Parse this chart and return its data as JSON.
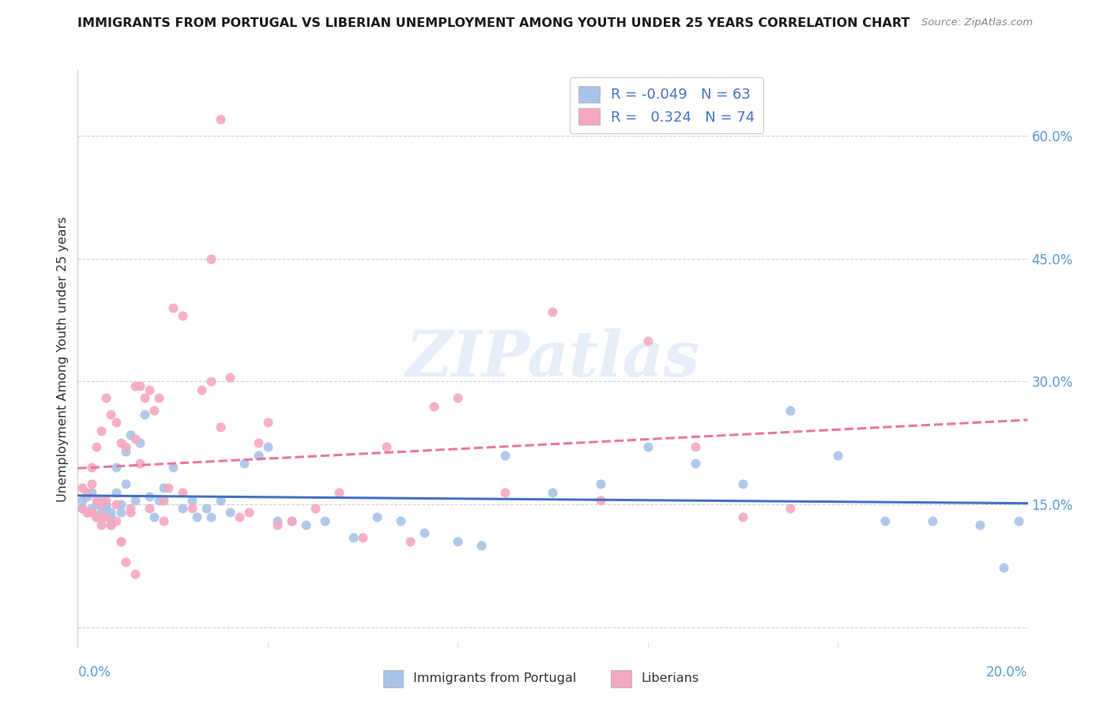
{
  "title": "IMMIGRANTS FROM PORTUGAL VS LIBERIAN UNEMPLOYMENT AMONG YOUTH UNDER 25 YEARS CORRELATION CHART",
  "source": "Source: ZipAtlas.com",
  "ylabel": "Unemployment Among Youth under 25 years",
  "xlim": [
    0,
    0.2
  ],
  "ylim": [
    -0.025,
    0.68
  ],
  "yticks": [
    0.0,
    0.15,
    0.3,
    0.45,
    0.6
  ],
  "ytick_labels_right": [
    "",
    "15.0%",
    "30.0%",
    "45.0%",
    "60.0%"
  ],
  "xtick_labels_bottom": [
    "0.0%",
    "20.0%"
  ],
  "grid_color": "#d0d0d0",
  "blue_color": "#a8c4e8",
  "pink_color": "#f5a8c0",
  "blue_line_color": "#4472c4",
  "pink_line_color": "#e8789e",
  "right_axis_color": "#5b9bd5",
  "bottom_axis_color": "#5b9bd5",
  "blue_R": "-0.049",
  "blue_N": "63",
  "pink_R": "0.324",
  "pink_N": "74",
  "watermark_text": "ZIPatlas",
  "legend_label_blue": "Immigrants from Portugal",
  "legend_label_pink": "Liberians",
  "blue_scatter_x": [
    0.001,
    0.001,
    0.002,
    0.002,
    0.003,
    0.003,
    0.004,
    0.004,
    0.005,
    0.005,
    0.005,
    0.006,
    0.006,
    0.007,
    0.007,
    0.008,
    0.008,
    0.009,
    0.009,
    0.01,
    0.01,
    0.011,
    0.012,
    0.013,
    0.014,
    0.015,
    0.016,
    0.017,
    0.018,
    0.02,
    0.022,
    0.024,
    0.025,
    0.027,
    0.028,
    0.03,
    0.032,
    0.035,
    0.038,
    0.04,
    0.042,
    0.045,
    0.048,
    0.052,
    0.058,
    0.063,
    0.068,
    0.073,
    0.08,
    0.085,
    0.09,
    0.1,
    0.11,
    0.12,
    0.13,
    0.14,
    0.15,
    0.16,
    0.17,
    0.18,
    0.19,
    0.195,
    0.198
  ],
  "blue_scatter_y": [
    0.145,
    0.155,
    0.14,
    0.16,
    0.145,
    0.165,
    0.135,
    0.15,
    0.14,
    0.155,
    0.135,
    0.145,
    0.15,
    0.14,
    0.135,
    0.165,
    0.195,
    0.15,
    0.14,
    0.215,
    0.175,
    0.235,
    0.155,
    0.225,
    0.26,
    0.16,
    0.135,
    0.155,
    0.17,
    0.195,
    0.145,
    0.155,
    0.135,
    0.145,
    0.135,
    0.155,
    0.14,
    0.2,
    0.21,
    0.22,
    0.13,
    0.13,
    0.125,
    0.13,
    0.11,
    0.135,
    0.13,
    0.115,
    0.105,
    0.1,
    0.21,
    0.165,
    0.175,
    0.22,
    0.2,
    0.175,
    0.265,
    0.21,
    0.13,
    0.13,
    0.125,
    0.073,
    0.13
  ],
  "pink_scatter_x": [
    0.001,
    0.001,
    0.002,
    0.002,
    0.003,
    0.003,
    0.003,
    0.004,
    0.004,
    0.004,
    0.005,
    0.005,
    0.005,
    0.006,
    0.006,
    0.006,
    0.007,
    0.007,
    0.008,
    0.008,
    0.008,
    0.009,
    0.009,
    0.01,
    0.01,
    0.011,
    0.011,
    0.012,
    0.012,
    0.013,
    0.013,
    0.014,
    0.015,
    0.016,
    0.017,
    0.018,
    0.019,
    0.02,
    0.022,
    0.024,
    0.026,
    0.028,
    0.03,
    0.032,
    0.034,
    0.036,
    0.038,
    0.04,
    0.042,
    0.045,
    0.05,
    0.055,
    0.06,
    0.065,
    0.07,
    0.075,
    0.08,
    0.09,
    0.1,
    0.11,
    0.12,
    0.13,
    0.14,
    0.15,
    0.003,
    0.005,
    0.007,
    0.009,
    0.012,
    0.015,
    0.018,
    0.022,
    0.028,
    0.03
  ],
  "pink_scatter_y": [
    0.145,
    0.17,
    0.14,
    0.165,
    0.195,
    0.14,
    0.175,
    0.135,
    0.155,
    0.22,
    0.135,
    0.15,
    0.24,
    0.135,
    0.155,
    0.28,
    0.125,
    0.26,
    0.13,
    0.15,
    0.25,
    0.105,
    0.225,
    0.08,
    0.22,
    0.14,
    0.145,
    0.23,
    0.295,
    0.2,
    0.295,
    0.28,
    0.29,
    0.265,
    0.28,
    0.155,
    0.17,
    0.39,
    0.165,
    0.145,
    0.29,
    0.3,
    0.245,
    0.305,
    0.135,
    0.14,
    0.225,
    0.25,
    0.125,
    0.13,
    0.145,
    0.165,
    0.11,
    0.22,
    0.105,
    0.27,
    0.28,
    0.165,
    0.385,
    0.155,
    0.35,
    0.22,
    0.135,
    0.145,
    0.14,
    0.125,
    0.125,
    0.105,
    0.065,
    0.145,
    0.13,
    0.38,
    0.45,
    0.62
  ]
}
